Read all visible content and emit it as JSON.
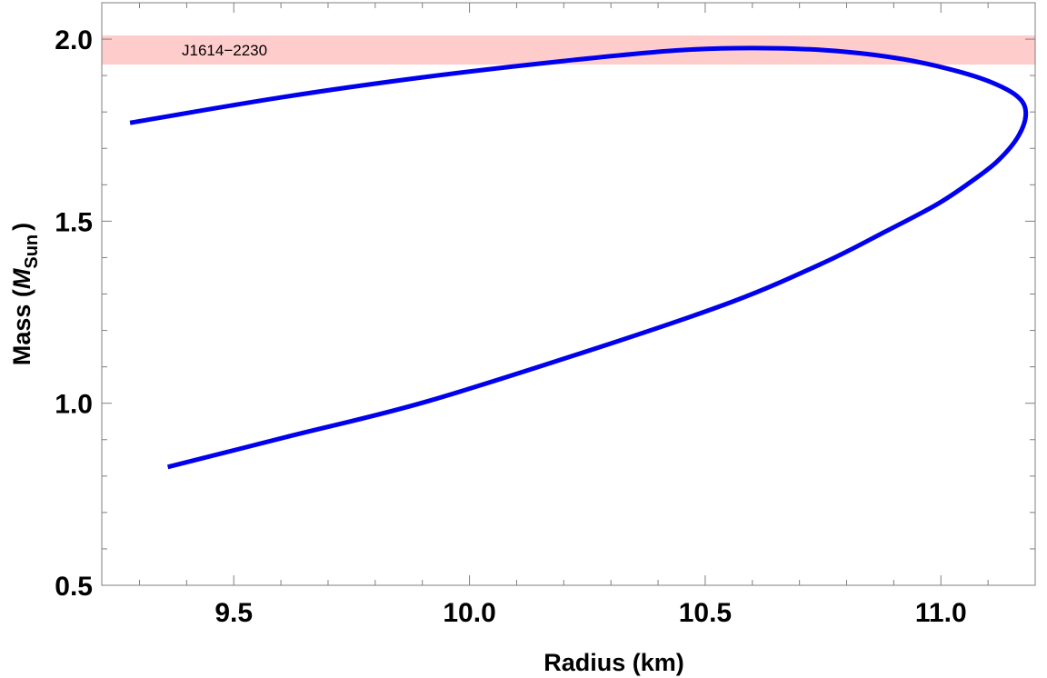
{
  "chart_data": {
    "type": "line",
    "title": "",
    "xlabel": "Radius (km)",
    "ylabel": {
      "prefix": "Mass (",
      "symbol": "M",
      "subscript": "Sun",
      "suffix": ")"
    },
    "xlim": [
      9.22,
      11.2
    ],
    "ylim": [
      0.5,
      2.1
    ],
    "x_ticks": [
      9.5,
      10.0,
      10.5,
      11.0
    ],
    "x_tick_labels": [
      "9.5",
      "10.0",
      "10.5",
      "11.0"
    ],
    "y_ticks": [
      0.5,
      1.0,
      1.5,
      2.0
    ],
    "y_tick_labels": [
      "0.5",
      "1.0",
      "1.5",
      "2.0"
    ],
    "grid": false,
    "band": {
      "label": "J1614−2230",
      "ymin": 1.93,
      "ymax": 2.01,
      "color": "#ffcccc"
    },
    "series": [
      {
        "color": "#0000ee",
        "points": [
          [
            9.36,
            0.825
          ],
          [
            9.62,
            0.91
          ],
          [
            9.91,
            1.005
          ],
          [
            10.29,
            1.16
          ],
          [
            10.56,
            1.28
          ],
          [
            10.75,
            1.385
          ],
          [
            10.88,
            1.47
          ],
          [
            10.99,
            1.545
          ],
          [
            11.06,
            1.605
          ],
          [
            11.12,
            1.665
          ],
          [
            11.165,
            1.735
          ],
          [
            11.18,
            1.8
          ],
          [
            11.16,
            1.845
          ],
          [
            11.1,
            1.885
          ],
          [
            11.02,
            1.917
          ],
          [
            10.92,
            1.945
          ],
          [
            10.8,
            1.965
          ],
          [
            10.65,
            1.975
          ],
          [
            10.45,
            1.97
          ],
          [
            10.2,
            1.94
          ],
          [
            9.9,
            1.895
          ],
          [
            9.6,
            1.84
          ],
          [
            9.28,
            1.77
          ]
        ]
      }
    ]
  }
}
